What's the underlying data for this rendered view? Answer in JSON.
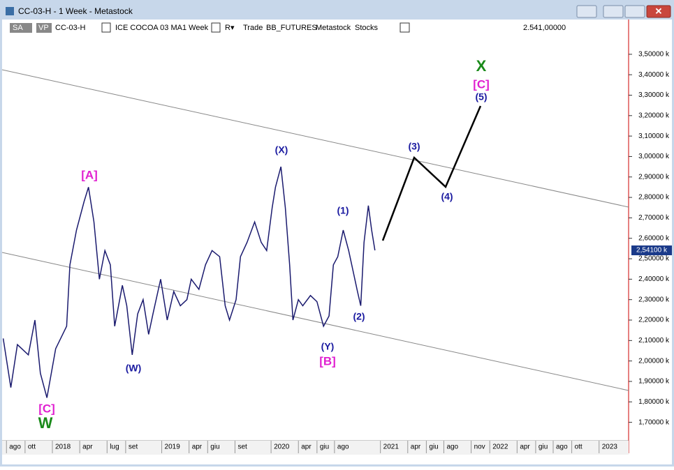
{
  "window": {
    "title": "CC-03-H - 1 Week - Metastock"
  },
  "toolbar": {
    "sa": "SA",
    "vp": "VP",
    "symbol": "CC-03-H",
    "name": "ICE COCOA 03 MA",
    "period": "1 Week",
    "r": "R▾",
    "trade": "Trade",
    "source": "BB_FUTURES",
    "app": "Metastock",
    "kind": "Stocks",
    "price": "2.541,00000"
  },
  "chart_data": {
    "type": "line",
    "color": "#1a1a6e",
    "x": [
      2017.55,
      2017.62,
      2017.68,
      2017.78,
      2017.84,
      2017.89,
      2017.95,
      2018.03,
      2018.13,
      2018.16,
      2018.22,
      2018.29,
      2018.33,
      2018.38,
      2018.43,
      2018.48,
      2018.53,
      2018.57,
      2018.64,
      2018.68,
      2018.73,
      2018.78,
      2018.83,
      2018.88,
      2018.92,
      2018.99,
      2019.05,
      2019.11,
      2019.17,
      2019.23,
      2019.27,
      2019.34,
      2019.4,
      2019.46,
      2019.53,
      2019.58,
      2019.62,
      2019.68,
      2019.72,
      2019.78,
      2019.85,
      2019.91,
      2019.96,
      2020.01,
      2020.04,
      2020.09,
      2020.13,
      2020.17,
      2020.2,
      2020.25,
      2020.29,
      2020.36,
      2020.42,
      2020.48,
      2020.53,
      2020.57,
      2020.61,
      2020.66,
      2020.71,
      2020.75,
      2020.79,
      2020.82,
      2020.85,
      2020.89,
      2020.92,
      2020.95
    ],
    "values": [
      2.11,
      1.87,
      2.08,
      2.03,
      2.2,
      1.94,
      1.82,
      2.06,
      2.17,
      2.47,
      2.64,
      2.78,
      2.85,
      2.68,
      2.4,
      2.54,
      2.47,
      2.17,
      2.37,
      2.27,
      2.03,
      2.23,
      2.3,
      2.13,
      2.23,
      2.4,
      2.2,
      2.34,
      2.27,
      2.3,
      2.4,
      2.35,
      2.47,
      2.54,
      2.51,
      2.27,
      2.2,
      2.3,
      2.51,
      2.58,
      2.68,
      2.58,
      2.54,
      2.75,
      2.85,
      2.95,
      2.75,
      2.47,
      2.2,
      2.3,
      2.27,
      2.32,
      2.29,
      2.17,
      2.22,
      2.47,
      2.51,
      2.64,
      2.54,
      2.44,
      2.34,
      2.27,
      2.58,
      2.76,
      2.64,
      2.541
    ],
    "last": {
      "value": 2.541,
      "label": "2,54100 k"
    },
    "xlim": [
      2017.54,
      2023.27
    ],
    "ylim": [
      1.61,
      3.67
    ],
    "yticks": [
      {
        "value": 3.5,
        "label": "3,50000 k"
      },
      {
        "value": 3.4,
        "label": "3,40000 k"
      },
      {
        "value": 3.3,
        "label": "3,30000 k"
      },
      {
        "value": 3.2,
        "label": "3,20000 k"
      },
      {
        "value": 3.1,
        "label": "3,10000 k"
      },
      {
        "value": 3.0,
        "label": "3,00000 k"
      },
      {
        "value": 2.9,
        "label": "2,90000 k"
      },
      {
        "value": 2.8,
        "label": "2,80000 k"
      },
      {
        "value": 2.7,
        "label": "2,70000 k"
      },
      {
        "value": 2.6,
        "label": "2,60000 k"
      },
      {
        "value": 2.5,
        "label": "2,50000 k"
      },
      {
        "value": 2.4,
        "label": "2,40000 k"
      },
      {
        "value": 2.3,
        "label": "2,30000 k"
      },
      {
        "value": 2.2,
        "label": "2,20000 k"
      },
      {
        "value": 2.1,
        "label": "2,10000 k"
      },
      {
        "value": 2.0,
        "label": "2,00000 k"
      },
      {
        "value": 1.9,
        "label": "1,90000 k"
      },
      {
        "value": 1.8,
        "label": "1,80000 k"
      },
      {
        "value": 1.7,
        "label": "1,70000 k"
      }
    ],
    "xticks": [
      {
        "value": 2017.58,
        "label": "ago"
      },
      {
        "value": 2017.75,
        "label": "ott"
      },
      {
        "value": 2018.0,
        "label": "2018"
      },
      {
        "value": 2018.25,
        "label": "apr"
      },
      {
        "value": 2018.5,
        "label": "lug"
      },
      {
        "value": 2018.67,
        "label": "set"
      },
      {
        "value": 2019.0,
        "label": "2019"
      },
      {
        "value": 2019.25,
        "label": "apr"
      },
      {
        "value": 2019.42,
        "label": "giu"
      },
      {
        "value": 2019.67,
        "label": "set"
      },
      {
        "value": 2020.0,
        "label": "2020"
      },
      {
        "value": 2020.25,
        "label": "apr"
      },
      {
        "value": 2020.42,
        "label": "giu"
      },
      {
        "value": 2020.58,
        "label": "ago"
      },
      {
        "value": 2021.0,
        "label": "2021"
      },
      {
        "value": 2021.25,
        "label": "apr"
      },
      {
        "value": 2021.42,
        "label": "giu"
      },
      {
        "value": 2021.58,
        "label": "ago"
      },
      {
        "value": 2021.83,
        "label": "nov"
      },
      {
        "value": 2022.0,
        "label": "2022"
      },
      {
        "value": 2022.25,
        "label": "apr"
      },
      {
        "value": 2022.42,
        "label": "giu"
      },
      {
        "value": 2022.58,
        "label": "ago"
      },
      {
        "value": 2022.75,
        "label": "ott"
      },
      {
        "value": 2023.0,
        "label": "2023"
      }
    ],
    "annotations": [
      "[A]",
      "(W)",
      "[C]",
      "W",
      "(X)",
      "(Y)",
      "[B]",
      "(1)",
      "(2)",
      "(3)",
      "(4)",
      "(5)",
      "[C]",
      "X"
    ]
  }
}
